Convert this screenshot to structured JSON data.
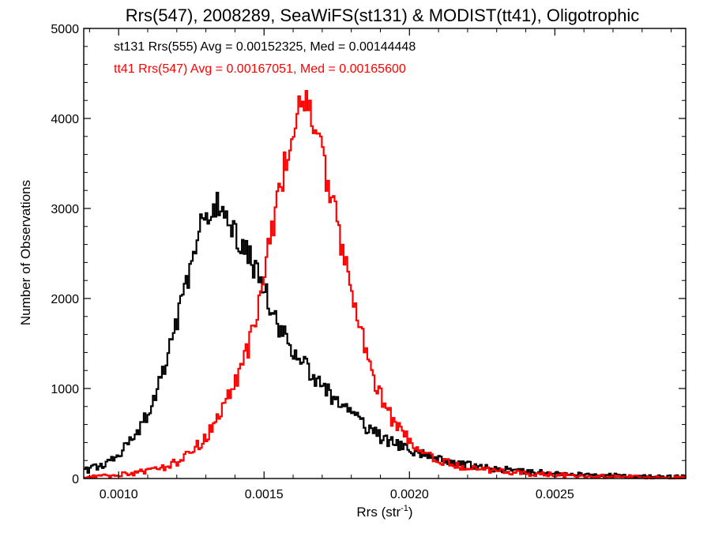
{
  "chart_data": {
    "type": "histogram",
    "title": "Rrs(547), 2008289, SeaWiFS(st131) & MODIST(tt41), Oligotrophic",
    "xlabel": "Rrs (str",
    "xlabel_sup": "-1",
    "xlabel_close": ")",
    "ylabel": "Number of Observations",
    "xlim": [
      0.00088,
      0.00295
    ],
    "ylim": [
      0,
      5000
    ],
    "x_major_ticks": [
      0.001,
      0.0015,
      0.002,
      0.0025
    ],
    "x_tick_labels": [
      "0.0010",
      "0.0015",
      "0.0020",
      "0.0025"
    ],
    "y_major_ticks": [
      0,
      1000,
      2000,
      3000,
      4000,
      5000
    ],
    "y_tick_labels": [
      "0",
      "1000",
      "2000",
      "3000",
      "4000",
      "5000"
    ],
    "grid": false,
    "legend_position": "top-left",
    "series": [
      {
        "name": "st131 Rrs(555)",
        "label": "st131 Rrs(555) Avg = 0.00152325, Med = 0.00144448",
        "color": "#000000",
        "points": [
          [
            0.00088,
            80
          ],
          [
            0.00095,
            160
          ],
          [
            0.001,
            260
          ],
          [
            0.00105,
            450
          ],
          [
            0.0011,
            700
          ],
          [
            0.00115,
            1150
          ],
          [
            0.0012,
            1750
          ],
          [
            0.00124,
            2250
          ],
          [
            0.00128,
            2750
          ],
          [
            0.00131,
            3000
          ],
          [
            0.00133,
            3050
          ],
          [
            0.00136,
            2950
          ],
          [
            0.0014,
            2750
          ],
          [
            0.00145,
            2450
          ],
          [
            0.0015,
            2100
          ],
          [
            0.00155,
            1700
          ],
          [
            0.0016,
            1450
          ],
          [
            0.00165,
            1200
          ],
          [
            0.0017,
            1050
          ],
          [
            0.00175,
            850
          ],
          [
            0.0018,
            720
          ],
          [
            0.00185,
            580
          ],
          [
            0.0019,
            460
          ],
          [
            0.00195,
            390
          ],
          [
            0.002,
            320
          ],
          [
            0.00205,
            260
          ],
          [
            0.0021,
            220
          ],
          [
            0.00215,
            180
          ],
          [
            0.0022,
            150
          ],
          [
            0.0023,
            110
          ],
          [
            0.0024,
            80
          ],
          [
            0.0025,
            60
          ],
          [
            0.0026,
            45
          ],
          [
            0.0027,
            35
          ],
          [
            0.0028,
            25
          ],
          [
            0.0029,
            20
          ],
          [
            0.00295,
            18
          ]
        ]
      },
      {
        "name": "tt41 Rrs(547)",
        "label": "tt41 Rrs(547) Avg = 0.00167051, Med = 0.00165600",
        "color": "#ff0000",
        "points": [
          [
            0.00088,
            10
          ],
          [
            0.001,
            40
          ],
          [
            0.0011,
            80
          ],
          [
            0.00115,
            120
          ],
          [
            0.0012,
            180
          ],
          [
            0.00125,
            300
          ],
          [
            0.0013,
            450
          ],
          [
            0.00135,
            700
          ],
          [
            0.0014,
            1050
          ],
          [
            0.00145,
            1500
          ],
          [
            0.00148,
            1900
          ],
          [
            0.0015,
            2300
          ],
          [
            0.00153,
            2800
          ],
          [
            0.00156,
            3300
          ],
          [
            0.00159,
            3800
          ],
          [
            0.00162,
            4200
          ],
          [
            0.00165,
            4200
          ],
          [
            0.00168,
            3900
          ],
          [
            0.0017,
            3550
          ],
          [
            0.00173,
            3150
          ],
          [
            0.00176,
            2700
          ],
          [
            0.00179,
            2250
          ],
          [
            0.00182,
            1800
          ],
          [
            0.00185,
            1400
          ],
          [
            0.00188,
            1100
          ],
          [
            0.00191,
            850
          ],
          [
            0.00195,
            600
          ],
          [
            0.002,
            420
          ],
          [
            0.00205,
            300
          ],
          [
            0.0021,
            210
          ],
          [
            0.00215,
            160
          ],
          [
            0.0022,
            120
          ],
          [
            0.0023,
            80
          ],
          [
            0.0024,
            55
          ],
          [
            0.0025,
            40
          ],
          [
            0.0026,
            30
          ],
          [
            0.0027,
            22
          ],
          [
            0.0028,
            15
          ],
          [
            0.0029,
            10
          ],
          [
            0.00295,
            8
          ]
        ]
      }
    ]
  }
}
